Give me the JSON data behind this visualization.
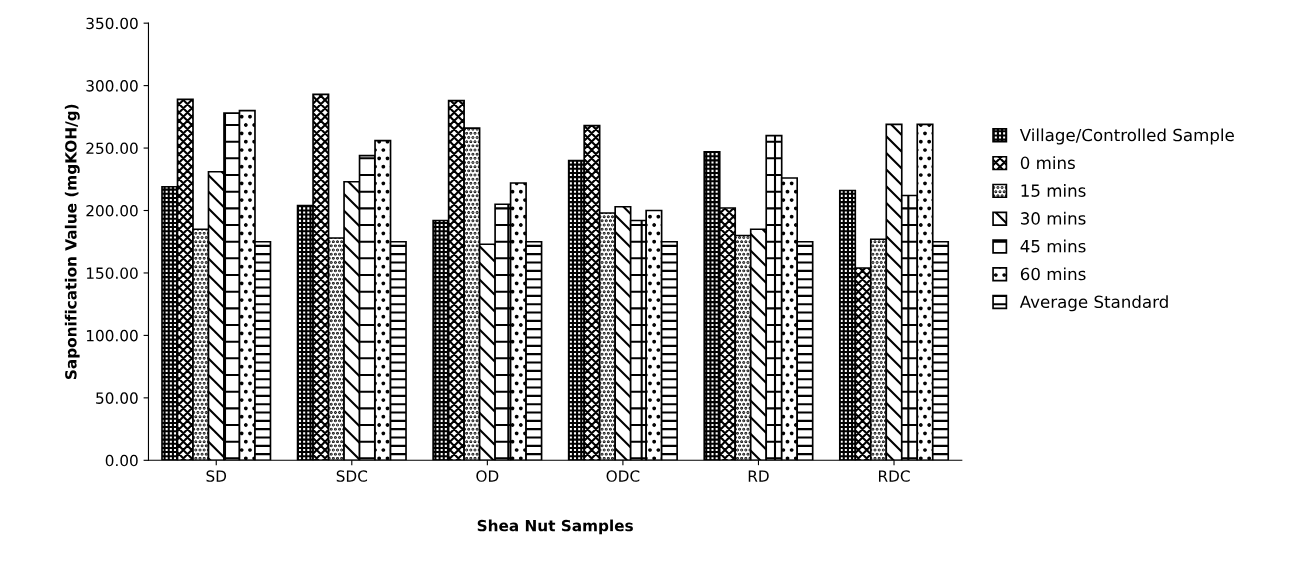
{
  "chart_data": {
    "type": "bar",
    "xlabel": "Shea Nut Samples",
    "ylabel": "Saponification Value (mgKOH/g)",
    "categories": [
      "SD",
      "SDC",
      "OD",
      "ODC",
      "RD",
      "RDC"
    ],
    "series": [
      {
        "name": "Village/Controlled Sample",
        "color": "#000000",
        "values": [
          219,
          204,
          192,
          240,
          247,
          216
        ]
      },
      {
        "name": "0 mins",
        "color": "#000000",
        "values": [
          289,
          293,
          288,
          268,
          202,
          154
        ]
      },
      {
        "name": "15 mins",
        "color": "#000000",
        "values": [
          185,
          178,
          266,
          198,
          180,
          177
        ]
      },
      {
        "name": "30 mins",
        "color": "#000000",
        "values": [
          231,
          223,
          173,
          203,
          185,
          269
        ]
      },
      {
        "name": "45 mins",
        "color": "#000000",
        "values": [
          278,
          244,
          205,
          192,
          260,
          212
        ]
      },
      {
        "name": "60 mins",
        "color": "#000000",
        "values": [
          280,
          256,
          222,
          200,
          226,
          269
        ]
      },
      {
        "name": "Average Standard",
        "color": "#000000",
        "values": [
          175,
          175,
          175,
          175,
          175,
          175
        ]
      }
    ],
    "ylim": [
      0,
      350
    ],
    "yticks": [
      {
        "value": 0,
        "label": "0.00"
      },
      {
        "value": 50,
        "label": "50.00"
      },
      {
        "value": 100,
        "label": "100.00"
      },
      {
        "value": 150,
        "label": "150.00"
      },
      {
        "value": 200,
        "label": "200.00"
      },
      {
        "value": 250,
        "label": "250.00"
      },
      {
        "value": 300,
        "label": "300.00"
      },
      {
        "value": 350,
        "label": "350.00"
      }
    ],
    "grid": false,
    "legend": "right"
  }
}
